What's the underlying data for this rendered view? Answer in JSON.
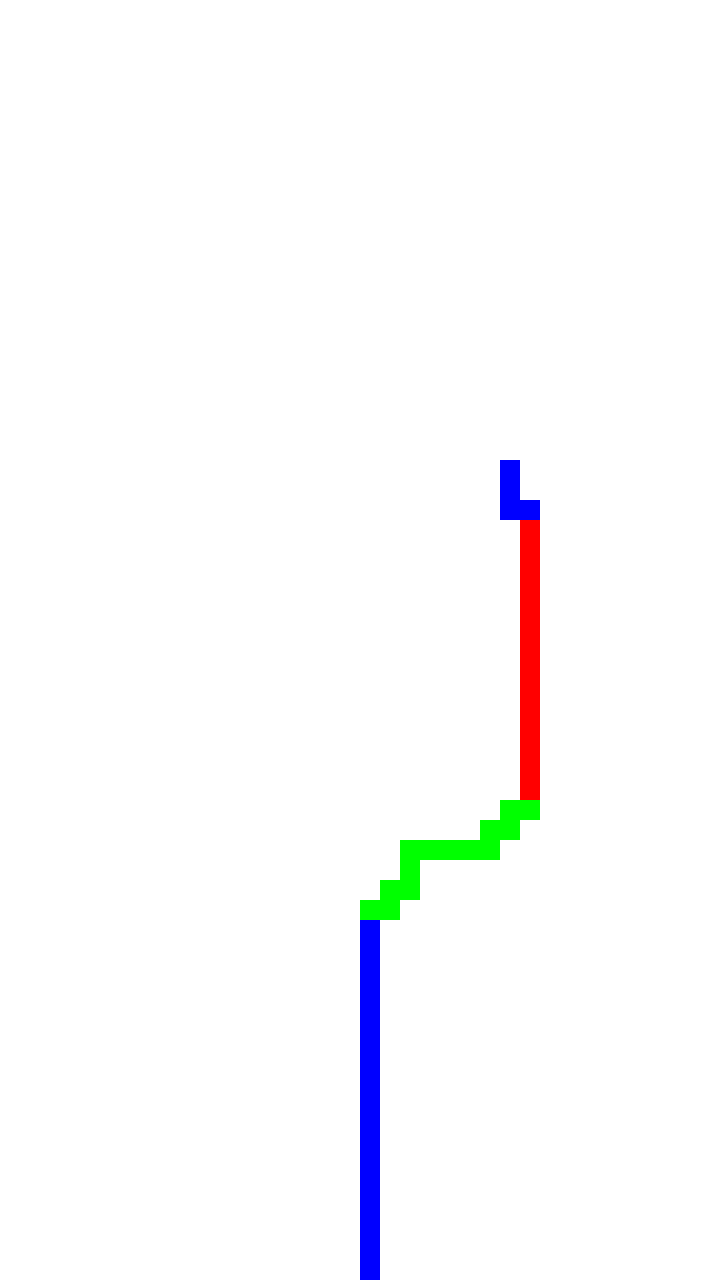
{
  "colors": {
    "background": "#ffffff",
    "blue": "#0000ff",
    "red": "#ff0000",
    "green": "#00ff00"
  },
  "path_segments": [
    {
      "name": "blue-top-segment",
      "color": "blue",
      "cells": [
        [
          25,
          23
        ],
        [
          25,
          24
        ],
        [
          25,
          25
        ],
        [
          26,
          25
        ]
      ]
    },
    {
      "name": "red-segment",
      "color": "red",
      "cells": [
        [
          26,
          26
        ],
        [
          26,
          27
        ],
        [
          26,
          28
        ],
        [
          26,
          29
        ],
        [
          26,
          30
        ],
        [
          26,
          31
        ],
        [
          26,
          32
        ],
        [
          26,
          33
        ],
        [
          26,
          34
        ],
        [
          26,
          35
        ],
        [
          26,
          36
        ],
        [
          26,
          37
        ],
        [
          26,
          38
        ],
        [
          26,
          39
        ]
      ]
    },
    {
      "name": "green-segment",
      "color": "green",
      "cells": [
        [
          25,
          40
        ],
        [
          26,
          40
        ],
        [
          24,
          41
        ],
        [
          25,
          41
        ],
        [
          20,
          42
        ],
        [
          21,
          42
        ],
        [
          22,
          42
        ],
        [
          23,
          42
        ],
        [
          24,
          42
        ],
        [
          20,
          43
        ],
        [
          19,
          44
        ],
        [
          20,
          44
        ],
        [
          18,
          45
        ],
        [
          19,
          45
        ]
      ]
    },
    {
      "name": "blue-bottom-segment",
      "color": "blue",
      "cells": [
        [
          18,
          46
        ],
        [
          18,
          47
        ],
        [
          18,
          48
        ],
        [
          18,
          49
        ],
        [
          18,
          50
        ],
        [
          18,
          51
        ],
        [
          18,
          52
        ],
        [
          18,
          53
        ],
        [
          18,
          54
        ],
        [
          18,
          55
        ],
        [
          18,
          56
        ],
        [
          18,
          57
        ],
        [
          18,
          58
        ],
        [
          18,
          59
        ],
        [
          18,
          60
        ],
        [
          18,
          61
        ],
        [
          18,
          62
        ],
        [
          18,
          63
        ]
      ]
    }
  ]
}
